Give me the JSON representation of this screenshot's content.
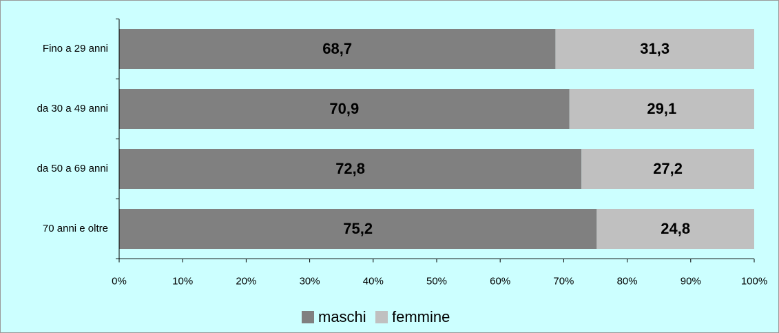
{
  "chart_data": {
    "type": "stacked_barh",
    "categories": [
      "Fino a 29 anni",
      "da 30 a 49 anni",
      "da 50 a 69 anni",
      "70 anni e oltre"
    ],
    "series": [
      {
        "name": "maschi",
        "color": "#808080",
        "values": [
          68.7,
          70.9,
          72.8,
          75.2
        ],
        "value_labels": [
          "68,7",
          "70,9",
          "72,8",
          "75,2"
        ]
      },
      {
        "name": "femmine",
        "color": "#c0c0c0",
        "values": [
          31.3,
          29.1,
          27.2,
          24.8
        ],
        "value_labels": [
          "31,3",
          "29,1",
          "27,2",
          "24,8"
        ]
      }
    ],
    "xlim": [
      0,
      100
    ],
    "xticks": [
      {
        "value": 0,
        "label": "0%"
      },
      {
        "value": 10,
        "label": "10%"
      },
      {
        "value": 20,
        "label": "20%"
      },
      {
        "value": 30,
        "label": "30%"
      },
      {
        "value": 40,
        "label": "40%"
      },
      {
        "value": 50,
        "label": "50%"
      },
      {
        "value": 60,
        "label": "60%"
      },
      {
        "value": 70,
        "label": "70%"
      },
      {
        "value": 80,
        "label": "80%"
      },
      {
        "value": 90,
        "label": "90%"
      },
      {
        "value": 100,
        "label": "100%"
      }
    ],
    "legend": "bottom"
  }
}
